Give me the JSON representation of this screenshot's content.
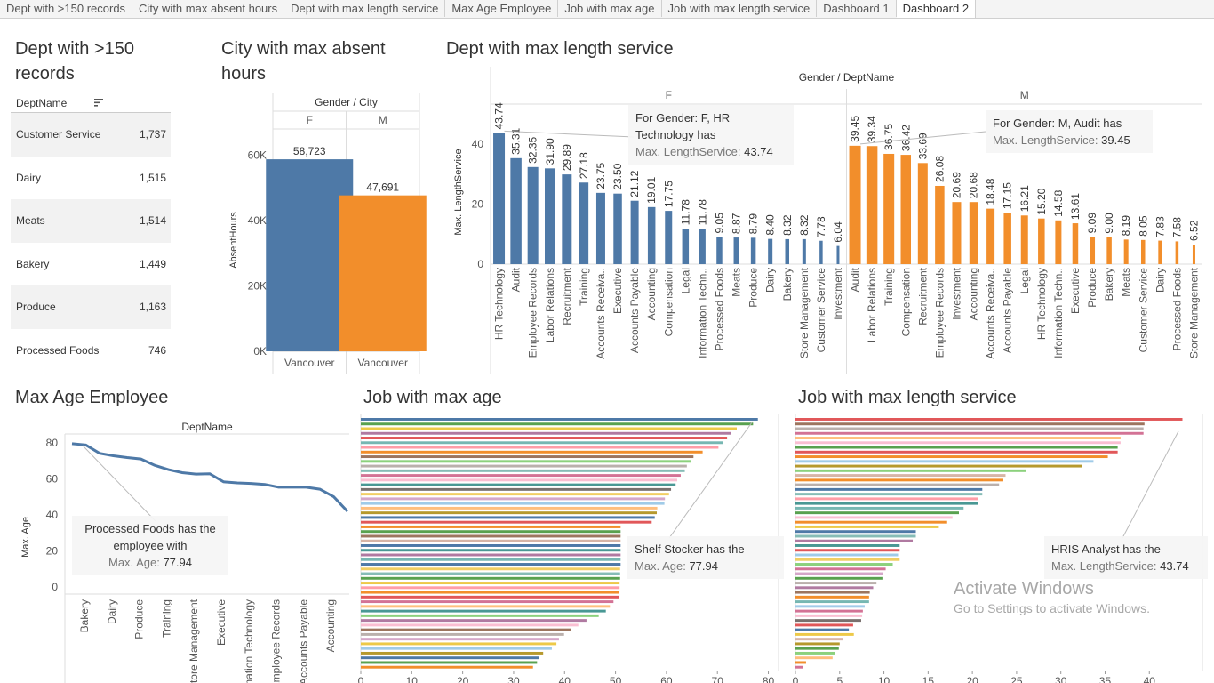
{
  "tabs": [
    {
      "label": "Dept with >150 records",
      "active": false
    },
    {
      "label": "City with max absent hours",
      "active": false
    },
    {
      "label": "Dept with max length service",
      "active": false
    },
    {
      "label": "Max Age Employee",
      "active": false
    },
    {
      "label": "Job with max age",
      "active": false
    },
    {
      "label": "Job with max length service",
      "active": false
    },
    {
      "label": "Dashboard 1",
      "active": false
    },
    {
      "label": "Dashboard 2",
      "active": true
    }
  ],
  "colors": {
    "blue": "#4e79a7",
    "orange": "#f28e2b",
    "line": "#4e79a7"
  },
  "panels": {
    "dept150": {
      "title": "Dept with >150 records",
      "header": "DeptName",
      "rows": [
        {
          "name": "Customer Service",
          "value": "1,737"
        },
        {
          "name": "Dairy",
          "value": "1,515"
        },
        {
          "name": "Meats",
          "value": "1,514"
        },
        {
          "name": "Bakery",
          "value": "1,449"
        },
        {
          "name": "Produce",
          "value": "1,163"
        },
        {
          "name": "Processed Foods",
          "value": "746"
        }
      ]
    },
    "city": {
      "title": "City with max absent hours"
    },
    "deptLen": {
      "title": "Dept with max length service",
      "tip_f": {
        "line1": "For  Gender: F, HR",
        "line2": "Technology has",
        "key": "Max. LengthService:",
        "value": "43.74"
      },
      "tip_m": {
        "line1": "For  Gender: M, Audit has",
        "key": "Max. LengthService:",
        "value": "39.45"
      }
    },
    "maxAge": {
      "title": "Max Age Employee",
      "tip": {
        "line1": "Processed Foods has the",
        "line2": "employee with",
        "key": "Max. Age:",
        "value": "77.94"
      }
    },
    "jobAge": {
      "title": "Job with max age",
      "tip": {
        "line1": "Shelf Stocker has the",
        "key": "Max. Age:",
        "value": "77.94"
      }
    },
    "jobLen": {
      "title": "Job with max length service",
      "tip": {
        "line1": "HRIS Analyst has the",
        "key": "Max. LengthService:",
        "value": "43.74"
      }
    }
  },
  "watermark": {
    "line1": "Activate Windows",
    "line2": "Go to Settings to activate Windows."
  },
  "chart_data": [
    {
      "id": "city",
      "type": "bar",
      "header": "Gender / City",
      "panes": [
        "F",
        "M"
      ],
      "categories": [
        "Vancouver",
        "Vancouver"
      ],
      "values": [
        58723,
        47691
      ],
      "value_labels": [
        "58,723",
        "47,691"
      ],
      "ylabel": "AbsentHours",
      "yticks": [
        "0K",
        "20K",
        "40K",
        "60K"
      ],
      "ylim": [
        0,
        68000
      ]
    },
    {
      "id": "deptLen",
      "type": "bar",
      "header": "Gender / DeptName",
      "ylabel": "Max. LengthService",
      "yticks": [
        "0",
        "20",
        "40"
      ],
      "ylim": [
        0,
        48
      ],
      "panes": [
        {
          "name": "F",
          "categories": [
            "HR Technology",
            "Audit",
            "Employee Records",
            "Labor Relations",
            "Recruitment",
            "Training",
            "Accounts Receiva..",
            "Executive",
            "Accounts Payable",
            "Accounting",
            "Compensation",
            "Legal",
            "Information Techn..",
            "Processed Foods",
            "Meats",
            "Produce",
            "Dairy",
            "Bakery",
            "Store Management",
            "Customer Service",
            "Investment"
          ],
          "values": [
            43.74,
            35.31,
            32.35,
            31.9,
            29.89,
            27.18,
            23.75,
            23.5,
            21.12,
            19.01,
            17.75,
            11.78,
            11.78,
            9.05,
            8.87,
            8.79,
            8.4,
            8.32,
            8.32,
            7.78,
            6.04
          ]
        },
        {
          "name": "M",
          "categories": [
            "Audit",
            "Labor Relations",
            "Training",
            "Compensation",
            "Recruitment",
            "Employee Records",
            "Investment",
            "Accounting",
            "Accounts Receiva..",
            "Accounts Payable",
            "Legal",
            "HR Technology",
            "Information Techn..",
            "Executive",
            "Produce",
            "Bakery",
            "Meats",
            "Customer Service",
            "Dairy",
            "Processed Foods",
            "Store Management"
          ],
          "values": [
            39.45,
            39.34,
            36.75,
            36.42,
            33.69,
            26.08,
            20.69,
            20.68,
            18.48,
            17.15,
            16.21,
            15.2,
            14.58,
            13.61,
            9.09,
            9.0,
            8.19,
            8.05,
            7.83,
            7.58,
            6.52
          ]
        }
      ]
    },
    {
      "id": "maxAge",
      "type": "line",
      "header": "DeptName",
      "ylabel": "Max. Age",
      "yticks": [
        "0",
        "20",
        "40",
        "60",
        "80"
      ],
      "ylim": [
        0,
        85
      ],
      "x_labels": [
        "Bakery",
        "Dairy",
        "Produce",
        "Training",
        "Store Management",
        "Executive",
        "Information Technology",
        "Employee Records",
        "Accounts Payable",
        "Accounting"
      ],
      "values": [
        79.6,
        78.9,
        74.3,
        72.9,
        71.9,
        71.1,
        67.6,
        65.2,
        63.5,
        62.7,
        62.9,
        58.4,
        57.8,
        57.5,
        57.0,
        55.4,
        55.5,
        55.4,
        54.3,
        50.1,
        42.0
      ]
    },
    {
      "id": "jobAge",
      "type": "bar",
      "orientation": "horizontal",
      "xticks": [
        "0",
        "10",
        "20",
        "30",
        "40",
        "50",
        "60",
        "70",
        "80"
      ],
      "xlim": [
        0,
        82
      ],
      "values": [
        77.94,
        77.0,
        73.8,
        72.6,
        71.9,
        71.1,
        70.2,
        67.1,
        65.3,
        64.9,
        64.0,
        63.6,
        62.8,
        62.1,
        61.8,
        60.9,
        60.5,
        59.7,
        59.6,
        58.2,
        58.1,
        57.7,
        57.1,
        51.0,
        51.0,
        51.0,
        51.0,
        51.0,
        51.0,
        51.0,
        51.0,
        51.0,
        50.9,
        50.9,
        50.9,
        50.8,
        50.8,
        50.7,
        50.6,
        49.6,
        48.9,
        48.1,
        46.7,
        44.3,
        42.7,
        41.3,
        39.9,
        38.9,
        38.4,
        37.5,
        35.8,
        35.0,
        34.6,
        33.8
      ],
      "colors": [
        "#4e79a7",
        "#59a14f",
        "#edc948",
        "#b07aa1",
        "#e15759",
        "#76b7b2",
        "#ff9da7",
        "#f28e2b",
        "#9c755f",
        "#8cd17d",
        "#bab0ac",
        "#86bcb6",
        "#d37295",
        "#fabfd2",
        "#499894",
        "#79706e",
        "#f1ce63",
        "#d4a6c8",
        "#a0cbe8",
        "#ffbe7d",
        "#b6992d",
        "#4e79a7",
        "#e15759",
        "#f28e2b",
        "#59a14f",
        "#9d7660",
        "#d7b5a6",
        "#4e79a7",
        "#499894",
        "#b07aa1",
        "#76b7b2",
        "#4e79a7",
        "#f1ce63",
        "#86bcb6",
        "#59a14f",
        "#edc948",
        "#ff9da7",
        "#f28e2b",
        "#e15759",
        "#d37295",
        "#ffbe7d",
        "#499894",
        "#8cd17d",
        "#b07aa1",
        "#fabfd2",
        "#9c755f",
        "#bab0ac",
        "#d4a6c8",
        "#edc948",
        "#a0cbe8",
        "#b6992d",
        "#4e79a7",
        "#59a14f",
        "#f28e2b"
      ]
    },
    {
      "id": "jobLen",
      "type": "bar",
      "orientation": "horizontal",
      "xticks": [
        "0",
        "5",
        "10",
        "15",
        "20",
        "25",
        "30",
        "35",
        "40"
      ],
      "xlim": [
        0,
        46
      ],
      "values": [
        43.74,
        39.45,
        39.34,
        39.34,
        36.75,
        36.75,
        36.42,
        36.42,
        35.31,
        33.69,
        32.35,
        26.08,
        23.75,
        23.5,
        23.02,
        21.12,
        21.12,
        20.69,
        20.68,
        19.01,
        18.48,
        17.75,
        17.15,
        16.21,
        13.61,
        13.61,
        13.26,
        11.78,
        11.78,
        11.6,
        11.78,
        11.0,
        10.2,
        9.9,
        9.83,
        9.16,
        8.79,
        8.4,
        8.32,
        8.32,
        7.83,
        7.62,
        7.54,
        7.43,
        6.52,
        6.04,
        6.6,
        5.4,
        5.0,
        4.9,
        4.45,
        4.2,
        1.2,
        0.9
      ],
      "colors": [
        "#e15759",
        "#9c755f",
        "#bab0ac",
        "#d37295",
        "#ffbe7d",
        "#fabfd2",
        "#59a14f",
        "#e15759",
        "#f28e2b",
        "#a0cbe8",
        "#b6992d",
        "#8cd17d",
        "#d7b5a6",
        "#f28e2b",
        "#bab0ac",
        "#4e79a7",
        "#86bcb6",
        "#ff9da7",
        "#499894",
        "#76b7b2",
        "#59a14f",
        "#fabfd2",
        "#f28e2b",
        "#edc948",
        "#4e79a7",
        "#86bcb6",
        "#b07aa1",
        "#499894",
        "#e15759",
        "#a0cbe8",
        "#f1ce63",
        "#8cd17d",
        "#d37295",
        "#d4a6c8",
        "#59a14f",
        "#bab0ac",
        "#b07aa1",
        "#9c755f",
        "#f28e2b",
        "#76b7b2",
        "#a0cbe8",
        "#d37295",
        "#fabfd2",
        "#79706e",
        "#e15759",
        "#4e79a7",
        "#edc948",
        "#d7b5a6",
        "#b6992d",
        "#59a14f",
        "#8cd17d",
        "#ffbe7d",
        "#f28e2b",
        "#d37295"
      ]
    }
  ]
}
